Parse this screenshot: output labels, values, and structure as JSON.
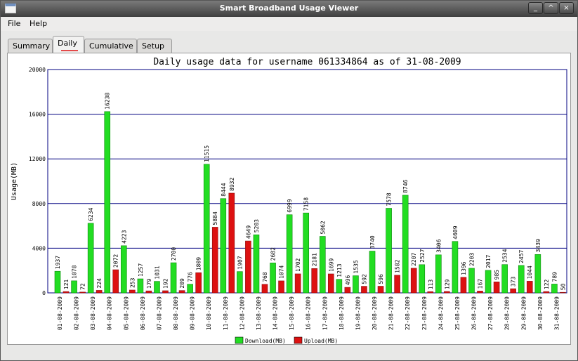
{
  "window": {
    "title": "Smart Broadband Usage Viewer",
    "app_icon": "window-icon",
    "controls": {
      "minimize": "_",
      "maximize": "^",
      "close": "×"
    }
  },
  "menubar": {
    "items": [
      "File",
      "Help"
    ]
  },
  "tabs": [
    {
      "label": "Summary",
      "active": false
    },
    {
      "label": "Daily",
      "active": true
    },
    {
      "label": "Cumulative",
      "active": false
    },
    {
      "label": "Setup",
      "active": false
    }
  ],
  "colors": {
    "download": "#22dd22",
    "upload": "#dd1111",
    "gridline": "#000080"
  },
  "chart_data": {
    "type": "bar",
    "title": "Daily usage data for username 061334864 as of 31-08-2009",
    "ylabel": "Usage(MB)",
    "xlabel": "",
    "ylim": [
      0,
      20000
    ],
    "yticks": [
      "0",
      "4000",
      "8000",
      "12000",
      "16000",
      "20000"
    ],
    "grid": true,
    "legend_position": "bottom-center",
    "categories": [
      "01-08-2009",
      "02-08-2009",
      "03-08-2009",
      "04-08-2009",
      "05-08-2009",
      "06-08-2009",
      "07-08-2009",
      "08-08-2009",
      "09-08-2009",
      "10-08-2009",
      "11-08-2009",
      "12-08-2009",
      "13-08-2009",
      "14-08-2009",
      "15-08-2009",
      "16-08-2009",
      "17-08-2009",
      "18-08-2009",
      "19-08-2009",
      "20-08-2009",
      "21-08-2009",
      "22-08-2009",
      "23-08-2009",
      "24-08-2009",
      "25-08-2009",
      "26-08-2009",
      "27-08-2009",
      "28-08-2009",
      "29-08-2009",
      "30-08-2009",
      "31-08-2009"
    ],
    "series": [
      {
        "name": "Download(MB)",
        "values": [
          1937,
          1078,
          6234,
          16238,
          4223,
          1257,
          1031,
          2700,
          776,
          11515,
          8444,
          1907,
          5203,
          2682,
          6999,
          7158,
          5062,
          1213,
          1535,
          3740,
          7578,
          8746,
          2527,
          3406,
          4609,
          2203,
          2017,
          2534,
          2457,
          3439,
          789
        ]
      },
      {
        "name": "Upload(MB)",
        "values": [
          121,
          72,
          224,
          2072,
          253,
          179,
          192,
          209,
          1809,
          5884,
          8932,
          4649,
          768,
          1074,
          1702,
          2181,
          1699,
          496,
          592,
          596,
          1582,
          2207,
          113,
          129,
          1396,
          167,
          985,
          373,
          1044,
          122,
          50
        ]
      }
    ]
  }
}
